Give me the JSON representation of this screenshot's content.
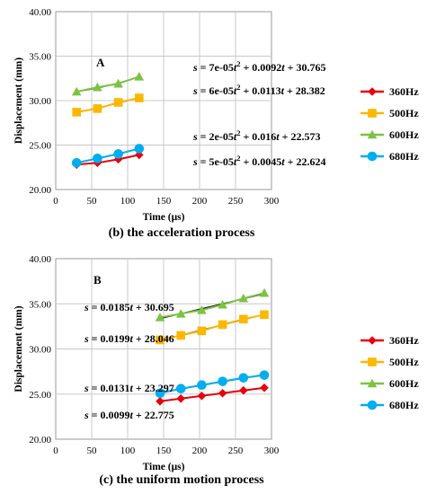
{
  "chart_data": [
    {
      "type": "scatter",
      "panel_label": "A",
      "caption": "(b) the acceleration process",
      "xlabel": "Time (μs)",
      "ylabel": "Displacement (mm)",
      "xlim": [
        0,
        300
      ],
      "ylim": [
        20,
        40
      ],
      "xticks": [
        "0",
        "50",
        "100",
        "150",
        "200",
        "250",
        "300"
      ],
      "yticks": [
        "20.00",
        "25.00",
        "30.00",
        "35.00",
        "40.00"
      ],
      "grid": true,
      "legend_position": "right",
      "series": [
        {
          "name": "360Hz",
          "color": "#e8000b",
          "marker": "diamond",
          "x": [
            29,
            58,
            87,
            116
          ],
          "y": [
            22.8,
            23.0,
            23.4,
            23.9
          ],
          "trendline": "poly2"
        },
        {
          "name": "500Hz",
          "color": "#fbb800",
          "marker": "square",
          "x": [
            29,
            58,
            87,
            116
          ],
          "y": [
            28.7,
            29.1,
            29.8,
            30.3
          ],
          "trendline": "poly2"
        },
        {
          "name": "600Hz",
          "color": "#7dc242",
          "marker": "triangle",
          "x": [
            29,
            58,
            87,
            116
          ],
          "y": [
            31.0,
            31.5,
            31.9,
            32.7
          ],
          "trendline": "poly2"
        },
        {
          "name": "680Hz",
          "color": "#00aeef",
          "marker": "circle",
          "x": [
            29,
            58,
            87,
            116
          ],
          "y": [
            23.0,
            23.5,
            24.0,
            24.6
          ],
          "trendline": "poly2"
        }
      ],
      "annotations": [
        {
          "parts": [
            "s",
            " = 7e-05",
            "t",
            "2",
            " + 0.0092",
            "t",
            " + 30.765"
          ]
        },
        {
          "parts": [
            "s",
            " = 6e-05",
            "t",
            "2",
            " + 0.0113",
            "t",
            " + 28.382"
          ]
        },
        {
          "parts": [
            "s",
            " = 2e-05",
            "t",
            "2",
            " + 0.016",
            "t",
            " + 22.573"
          ]
        },
        {
          "parts": [
            "s",
            " = 5e-05",
            "t",
            "2",
            " + 0.0045",
            "t",
            " + 22.624"
          ]
        }
      ]
    },
    {
      "type": "scatter",
      "panel_label": "B",
      "caption": "(c) the uniform motion process",
      "xlabel": "Time (μs)",
      "ylabel": "Displacement (mm)",
      "xlim": [
        0,
        300
      ],
      "ylim": [
        20,
        40
      ],
      "xticks": [
        "0",
        "50",
        "100",
        "150",
        "200",
        "250",
        "300"
      ],
      "yticks": [
        "20.00",
        "25.00",
        "30.00",
        "35.00",
        "40.00"
      ],
      "grid": true,
      "legend_position": "right",
      "series": [
        {
          "name": "360Hz",
          "color": "#e8000b",
          "marker": "diamond",
          "x": [
            145,
            174,
            203,
            232,
            261,
            290
          ],
          "y": [
            24.2,
            24.5,
            24.8,
            25.1,
            25.4,
            25.7
          ],
          "trendline": "linear"
        },
        {
          "name": "500Hz",
          "color": "#fbb800",
          "marker": "square",
          "x": [
            145,
            174,
            203,
            232,
            261,
            290
          ],
          "y": [
            31.0,
            31.5,
            32.0,
            32.7,
            33.3,
            33.8
          ],
          "trendline": "linear"
        },
        {
          "name": "600Hz",
          "color": "#7dc242",
          "marker": "triangle",
          "x": [
            145,
            174,
            203,
            232,
            261,
            290
          ],
          "y": [
            33.5,
            33.9,
            34.3,
            34.9,
            35.6,
            36.2
          ],
          "trendline": "linear"
        },
        {
          "name": "680Hz",
          "color": "#00aeef",
          "marker": "circle",
          "x": [
            145,
            174,
            203,
            232,
            261,
            290
          ],
          "y": [
            25.1,
            25.6,
            26.0,
            26.4,
            26.8,
            27.1
          ],
          "trendline": "linear"
        }
      ],
      "annotations": [
        {
          "parts": [
            "s",
            " = 0.0185",
            "t",
            " + 30.695"
          ]
        },
        {
          "parts": [
            "s",
            " = 0.0199",
            "t",
            " + 28.046"
          ]
        },
        {
          "parts": [
            "s",
            " = 0.0131",
            "t",
            " + 23.297"
          ]
        },
        {
          "parts": [
            "s",
            " = 0.0099",
            "t",
            " + 22.775"
          ]
        }
      ]
    }
  ]
}
